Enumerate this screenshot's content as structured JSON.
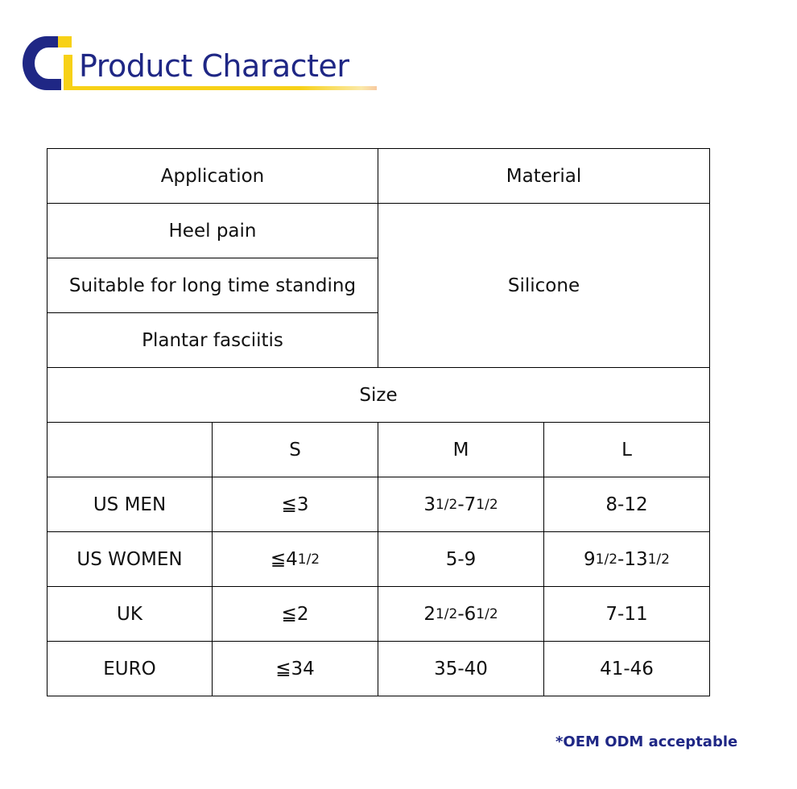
{
  "header": {
    "title": "Product Character",
    "logo_text": "CI",
    "brand_colors": {
      "blue": "#1f2785",
      "yellow": "#f7d117"
    }
  },
  "table": {
    "application_header": "Application",
    "material_header": "Material",
    "applications": [
      "Heel pain",
      "Suitable for long time standing",
      "Plantar fasciitis"
    ],
    "material": "Silicone",
    "size_header": "Size",
    "size_columns": [
      "",
      "S",
      "M",
      "L"
    ],
    "size_rows": [
      {
        "label": "US MEN",
        "cells": [
          [
            {
              "t": "≦3"
            }
          ],
          [
            {
              "t": "3"
            },
            {
              "t": "1/2",
              "small": true
            },
            {
              "t": "-7"
            },
            {
              "t": "1/2",
              "small": true
            }
          ],
          [
            {
              "t": "8-12"
            }
          ]
        ]
      },
      {
        "label": "US WOMEN",
        "cells": [
          [
            {
              "t": "≦4"
            },
            {
              "t": "1/2",
              "small": true
            }
          ],
          [
            {
              "t": "5-9"
            }
          ],
          [
            {
              "t": "9"
            },
            {
              "t": "1/2",
              "small": true
            },
            {
              "t": "-13"
            },
            {
              "t": "1/2",
              "small": true
            }
          ]
        ]
      },
      {
        "label": "UK",
        "cells": [
          [
            {
              "t": "≦2"
            }
          ],
          [
            {
              "t": "2"
            },
            {
              "t": "1/2",
              "small": true
            },
            {
              "t": "-6"
            },
            {
              "t": "1/2",
              "small": true
            }
          ],
          [
            {
              "t": "7-11"
            }
          ]
        ]
      },
      {
        "label": "EURO",
        "cells": [
          [
            {
              "t": "≦34"
            }
          ],
          [
            {
              "t": "35-40"
            }
          ],
          [
            {
              "t": "41-46"
            }
          ]
        ]
      }
    ]
  },
  "footer": {
    "note": "*OEM ODM acceptable"
  }
}
